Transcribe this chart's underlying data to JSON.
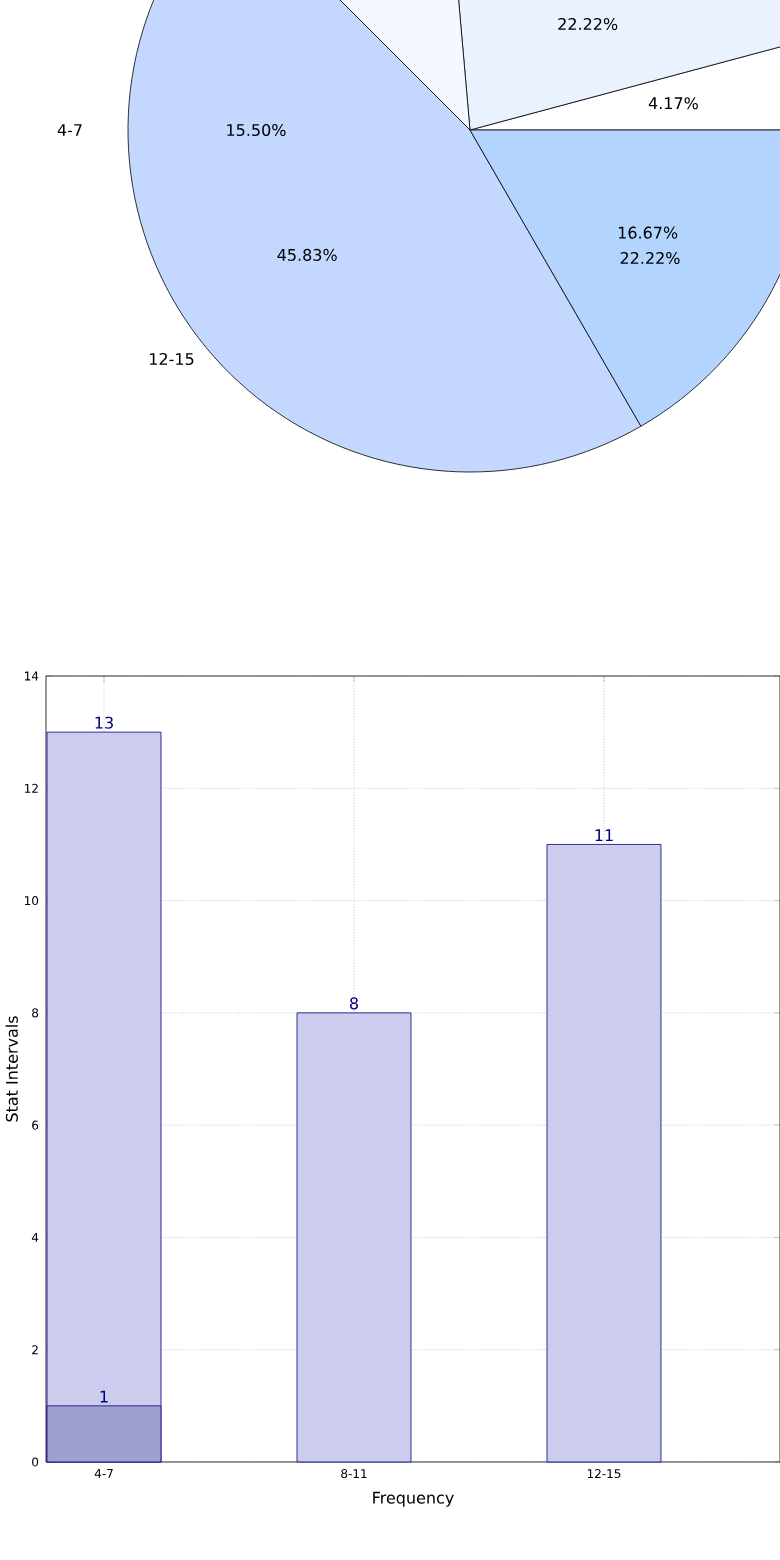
{
  "chart_data": [
    {
      "type": "pie",
      "categories": [
        null,
        null,
        null,
        "12-15",
        null
      ],
      "values": [
        4.17,
        22.22,
        11.11,
        45.83,
        16.67
      ],
      "value_labels": [
        "4.17%",
        "22.22%",
        null,
        "45.83%",
        "16.67%"
      ],
      "colors": [
        "#ffffff",
        "#ebf2ff",
        "#f5f8ff",
        "#c4d8ff",
        "#b3d4ff"
      ],
      "annotations": [
        "4-7",
        "15.50%",
        "22.22%"
      ]
    },
    {
      "type": "bar",
      "categories": [
        "4-7",
        "8-11",
        "12-15"
      ],
      "series": [
        {
          "color": "#ccccee",
          "values": [
            13,
            8,
            11
          ]
        },
        {
          "color": "#a0a0d0",
          "values": [
            1,
            null,
            null
          ]
        }
      ],
      "ylim": [
        0,
        14
      ],
      "yticks": [
        0,
        2,
        4,
        6,
        8,
        10,
        12,
        14
      ],
      "xlabel": "Frequency",
      "ylabel": "Stat Intervals",
      "grid": true,
      "data_labels": true
    }
  ]
}
